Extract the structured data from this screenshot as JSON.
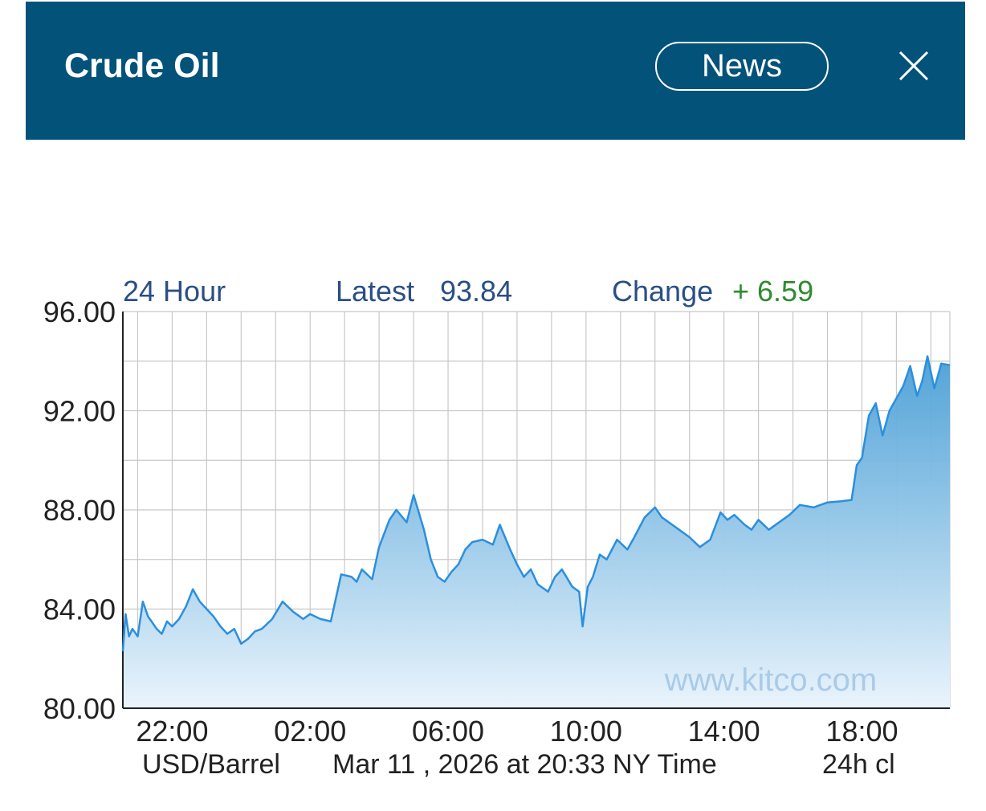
{
  "header": {
    "title": "Crude Oil",
    "news_label": "News",
    "close_icon": "close-icon",
    "background": "#03527a"
  },
  "chart_data": {
    "type": "area",
    "period_label": "24 Hour",
    "latest_label": "Latest",
    "latest_value": "93.84",
    "change_label": "Change",
    "change_value": "+ 6.59",
    "change_color": "#2e8b2e",
    "line_color": "#2b8fde",
    "label_color": "#2a4f86",
    "y_ticks": [
      "96.00",
      "92.00",
      "88.00",
      "84.00",
      "80.00"
    ],
    "ylim": [
      80,
      96
    ],
    "x_ticks": [
      "22:00",
      "02:00",
      "06:00",
      "10:00",
      "14:00",
      "18:00"
    ],
    "x_tick_hours": [
      22,
      26,
      30,
      34,
      38,
      42
    ],
    "xlim": [
      20.57,
      44.55
    ],
    "unit_label": "USD/Barrel",
    "timestamp": "Mar 11 , 2026 at 20:33 NY Time",
    "close_label": "24h cl",
    "watermark": "www.kitco.com",
    "series": [
      {
        "x": [
          20.57,
          20.65,
          20.75,
          20.85,
          21.0,
          21.15,
          21.3,
          21.4,
          21.55,
          21.7,
          21.85,
          22.0,
          22.2,
          22.4,
          22.6,
          22.8,
          23.0,
          23.2,
          23.4,
          23.6,
          23.8,
          24.0,
          24.2,
          24.4,
          24.6,
          24.9,
          25.2,
          25.5,
          25.8,
          26.0,
          26.3,
          26.6,
          26.9,
          27.2,
          27.35,
          27.5,
          27.8,
          28.0,
          28.3,
          28.5,
          28.8,
          29.0,
          29.3,
          29.5,
          29.7,
          29.9,
          30.1,
          30.3,
          30.5,
          30.7,
          31.0,
          31.3,
          31.5,
          31.8,
          32.0,
          32.2,
          32.4,
          32.6,
          32.9,
          33.1,
          33.3,
          33.6,
          33.8,
          33.9,
          34.05,
          34.2,
          34.4,
          34.6,
          34.9,
          35.2,
          35.4,
          35.7,
          36.0,
          36.2,
          36.5,
          36.7,
          37.0,
          37.3,
          37.6,
          37.9,
          38.1,
          38.3,
          38.6,
          38.8,
          39.0,
          39.3,
          39.6,
          39.9,
          40.2,
          40.6,
          41.0,
          41.4,
          41.7,
          41.85,
          42.0,
          42.2,
          42.4,
          42.6,
          42.8,
          43.0,
          43.2,
          43.4,
          43.6,
          43.75,
          43.9,
          44.1,
          44.3,
          44.55
        ],
        "y": [
          82.3,
          83.8,
          82.9,
          83.2,
          82.9,
          84.3,
          83.7,
          83.5,
          83.2,
          83.0,
          83.5,
          83.3,
          83.6,
          84.1,
          84.8,
          84.3,
          84.0,
          83.7,
          83.3,
          83.0,
          83.2,
          82.6,
          82.8,
          83.1,
          83.2,
          83.6,
          84.3,
          83.9,
          83.6,
          83.8,
          83.6,
          83.5,
          85.4,
          85.3,
          85.1,
          85.6,
          85.2,
          86.5,
          87.6,
          88.0,
          87.5,
          88.6,
          87.2,
          86.0,
          85.3,
          85.1,
          85.5,
          85.8,
          86.4,
          86.7,
          86.8,
          86.6,
          87.4,
          86.4,
          85.8,
          85.3,
          85.6,
          85.0,
          84.7,
          85.3,
          85.6,
          84.9,
          84.7,
          83.3,
          84.9,
          85.3,
          86.2,
          86.0,
          86.8,
          86.4,
          86.9,
          87.7,
          88.1,
          87.7,
          87.4,
          87.2,
          86.9,
          86.5,
          86.8,
          87.9,
          87.6,
          87.8,
          87.4,
          87.2,
          87.6,
          87.2,
          87.5,
          87.8,
          88.2,
          88.1,
          88.3,
          88.35,
          88.4,
          89.8,
          90.1,
          91.8,
          92.3,
          91.0,
          92.0,
          92.5,
          93.0,
          93.8,
          92.6,
          93.2,
          94.2,
          92.9,
          93.9,
          93.84
        ]
      }
    ]
  }
}
